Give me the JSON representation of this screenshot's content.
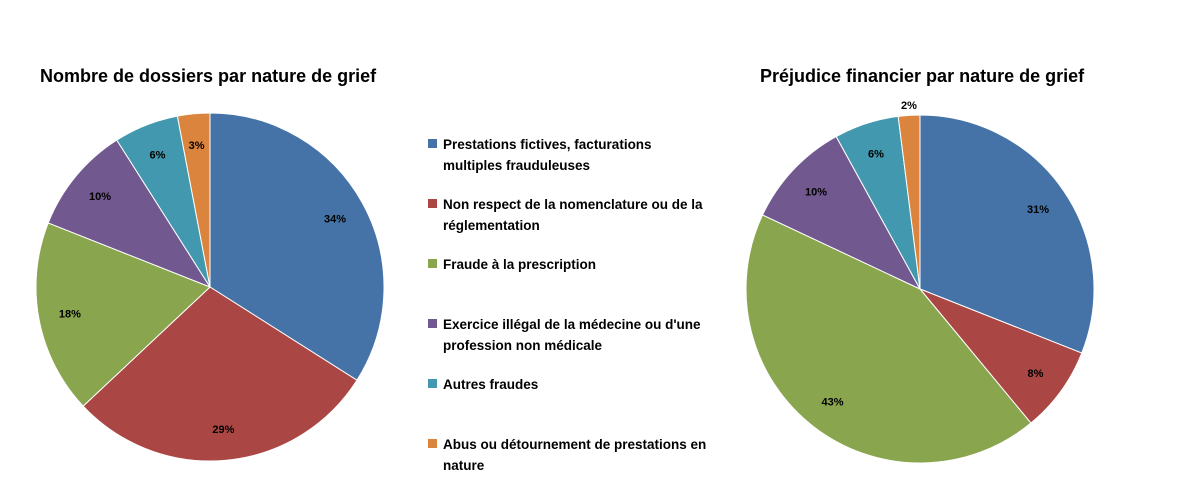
{
  "chart_data": [
    {
      "type": "pie",
      "title": "Nombre de dossiers par nature de grief",
      "categories": [
        "Prestations fictives, facturations multiples frauduleuses",
        "Non respect de la nomenclature ou de la réglementation",
        "Fraude à la prescription",
        "Exercice illégal de la médecine ou d'une profession non médicale",
        "Autres fraudes",
        "Abus ou détournement de prestations en nature"
      ],
      "values": [
        34,
        29,
        18,
        10,
        6,
        3
      ],
      "labels": [
        "34%",
        "29%",
        "18%",
        "10%",
        "6%",
        "3%"
      ],
      "colors": [
        "#4572A7",
        "#AA4643",
        "#89A54E",
        "#71588F",
        "#4198AF",
        "#DB843D"
      ],
      "legend_position": "right"
    },
    {
      "type": "pie",
      "title": "Préjudice financier par nature de grief",
      "categories": [
        "Prestations fictives, facturations multiples frauduleuses",
        "Non respect de la nomenclature ou de la réglementation",
        "Fraude à la prescription",
        "Exercice illégal de la médecine ou d'une profession non médicale",
        "Autres fraudes",
        "Abus ou détournement de prestations en nature"
      ],
      "values": [
        31,
        8,
        43,
        10,
        6,
        2
      ],
      "labels": [
        "31%",
        "8%",
        "43%",
        "10%",
        "6%",
        "2%"
      ],
      "colors": [
        "#4572A7",
        "#AA4643",
        "#89A54E",
        "#71588F",
        "#4198AF",
        "#DB843D"
      ],
      "legend_position": "left"
    }
  ],
  "legend": {
    "items": [
      {
        "lines": [
          "Prestations fictives, facturations",
          "multiples frauduleuses"
        ],
        "color": "#4572A7"
      },
      {
        "lines": [
          "Non respect de la nomenclature ou de la",
          "réglementation"
        ],
        "color": "#AA4643"
      },
      {
        "lines": [
          "Fraude à la prescription"
        ],
        "color": "#89A54E"
      },
      {
        "lines": [
          "Exercice illégal de la médecine ou d'une",
          "profession non médicale"
        ],
        "color": "#71588F"
      },
      {
        "lines": [
          "Autres fraudes"
        ],
        "color": "#4198AF"
      },
      {
        "lines": [
          "Abus ou détournement de prestations en",
          "nature"
        ],
        "color": "#DB843D"
      }
    ]
  }
}
